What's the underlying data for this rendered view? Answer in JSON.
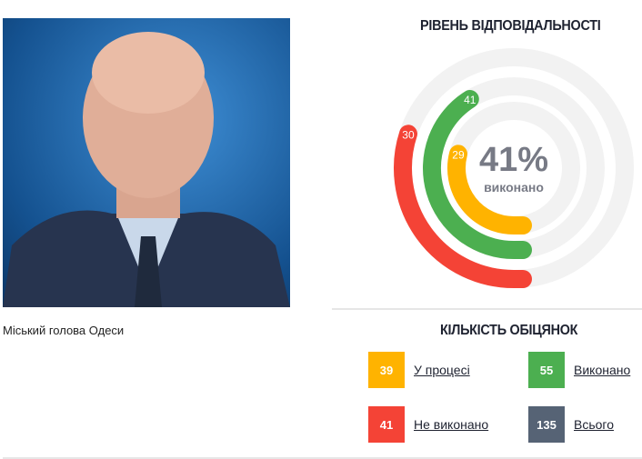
{
  "profile": {
    "caption": "Міський голова Одеси"
  },
  "responsibility": {
    "title": "РІВЕНЬ ВІДПОВІДАЛЬНОСТІ",
    "percent": "41%",
    "percent_label": "виконано",
    "rings": [
      {
        "value": 30,
        "label": "30",
        "color": "#f44336"
      },
      {
        "value": 41,
        "label": "41",
        "color": "#4caf50"
      },
      {
        "value": 29,
        "label": "29",
        "color": "#ffb300"
      }
    ],
    "track_color": "#f2f2f2"
  },
  "promises": {
    "title": "КІЛЬКІСТЬ ОБІЦЯНОК",
    "items": [
      {
        "count": "39",
        "label": "У процесі",
        "color": "#ffb300"
      },
      {
        "count": "55",
        "label": "Виконано",
        "color": "#4caf50"
      },
      {
        "count": "41",
        "label": "Не виконано",
        "color": "#f44336"
      },
      {
        "count": "135",
        "label": "Всього",
        "color": "#566375"
      }
    ]
  }
}
